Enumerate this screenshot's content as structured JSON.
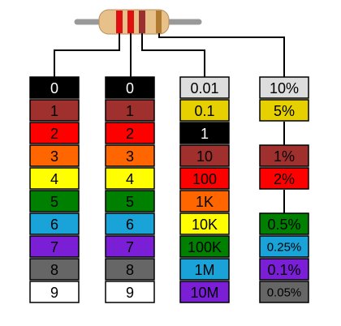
{
  "columns": [
    {
      "groups": [
        [
          {
            "label": "0",
            "color": "#000000",
            "text": "#ffffff"
          },
          {
            "label": "1",
            "color": "#a0302e",
            "text": "#000000"
          },
          {
            "label": "2",
            "color": "#ff0000",
            "text": "#000000"
          },
          {
            "label": "3",
            "color": "#ff6600",
            "text": "#000000"
          },
          {
            "label": "4",
            "color": "#ffff00",
            "text": "#000000"
          },
          {
            "label": "5",
            "color": "#008000",
            "text": "#000000"
          },
          {
            "label": "6",
            "color": "#1aa3d8",
            "text": "#000000"
          },
          {
            "label": "7",
            "color": "#7a1fd6",
            "text": "#000000"
          },
          {
            "label": "8",
            "color": "#666666",
            "text": "#000000"
          },
          {
            "label": "9",
            "color": "#ffffff",
            "text": "#000000"
          }
        ]
      ]
    },
    {
      "groups": [
        [
          {
            "label": "0",
            "color": "#000000",
            "text": "#ffffff"
          },
          {
            "label": "1",
            "color": "#a0302e",
            "text": "#000000"
          },
          {
            "label": "2",
            "color": "#ff0000",
            "text": "#000000"
          },
          {
            "label": "3",
            "color": "#ff6600",
            "text": "#000000"
          },
          {
            "label": "4",
            "color": "#ffff00",
            "text": "#000000"
          },
          {
            "label": "5",
            "color": "#008000",
            "text": "#000000"
          },
          {
            "label": "6",
            "color": "#1aa3d8",
            "text": "#000000"
          },
          {
            "label": "7",
            "color": "#7a1fd6",
            "text": "#000000"
          },
          {
            "label": "8",
            "color": "#666666",
            "text": "#000000"
          },
          {
            "label": "9",
            "color": "#ffffff",
            "text": "#000000"
          }
        ]
      ]
    },
    {
      "groups": [
        [
          {
            "label": "0.01",
            "color": "#dddddd",
            "text": "#000000"
          },
          {
            "label": "0.1",
            "color": "#e6d000",
            "text": "#000000"
          },
          {
            "label": "1",
            "color": "#000000",
            "text": "#ffffff"
          },
          {
            "label": "10",
            "color": "#a0302e",
            "text": "#000000"
          },
          {
            "label": "100",
            "color": "#ff0000",
            "text": "#000000"
          },
          {
            "label": "1K",
            "color": "#ff6600",
            "text": "#000000"
          },
          {
            "label": "10K",
            "color": "#ffff00",
            "text": "#000000"
          },
          {
            "label": "100K",
            "color": "#008000",
            "text": "#000000"
          },
          {
            "label": "1M",
            "color": "#1aa3d8",
            "text": "#000000"
          },
          {
            "label": "10M",
            "color": "#7a1fd6",
            "text": "#000000"
          }
        ]
      ]
    },
    {
      "groups": [
        [
          {
            "label": "10%",
            "color": "#dddddd",
            "text": "#000000"
          },
          {
            "label": "5%",
            "color": "#e6d000",
            "text": "#000000"
          }
        ],
        [
          {
            "label": "1%",
            "color": "#a0302e",
            "text": "#000000"
          },
          {
            "label": "2%",
            "color": "#ff0000",
            "text": "#000000"
          }
        ],
        [
          {
            "label": "0.5%",
            "color": "#008000",
            "text": "#000000"
          },
          {
            "label": "0.25%",
            "color": "#1aa3d8",
            "text": "#000000"
          },
          {
            "label": "0.1%",
            "color": "#7a1fd6",
            "text": "#000000"
          },
          {
            "label": "0.05%",
            "color": "#666666",
            "text": "#000000"
          }
        ]
      ]
    }
  ]
}
